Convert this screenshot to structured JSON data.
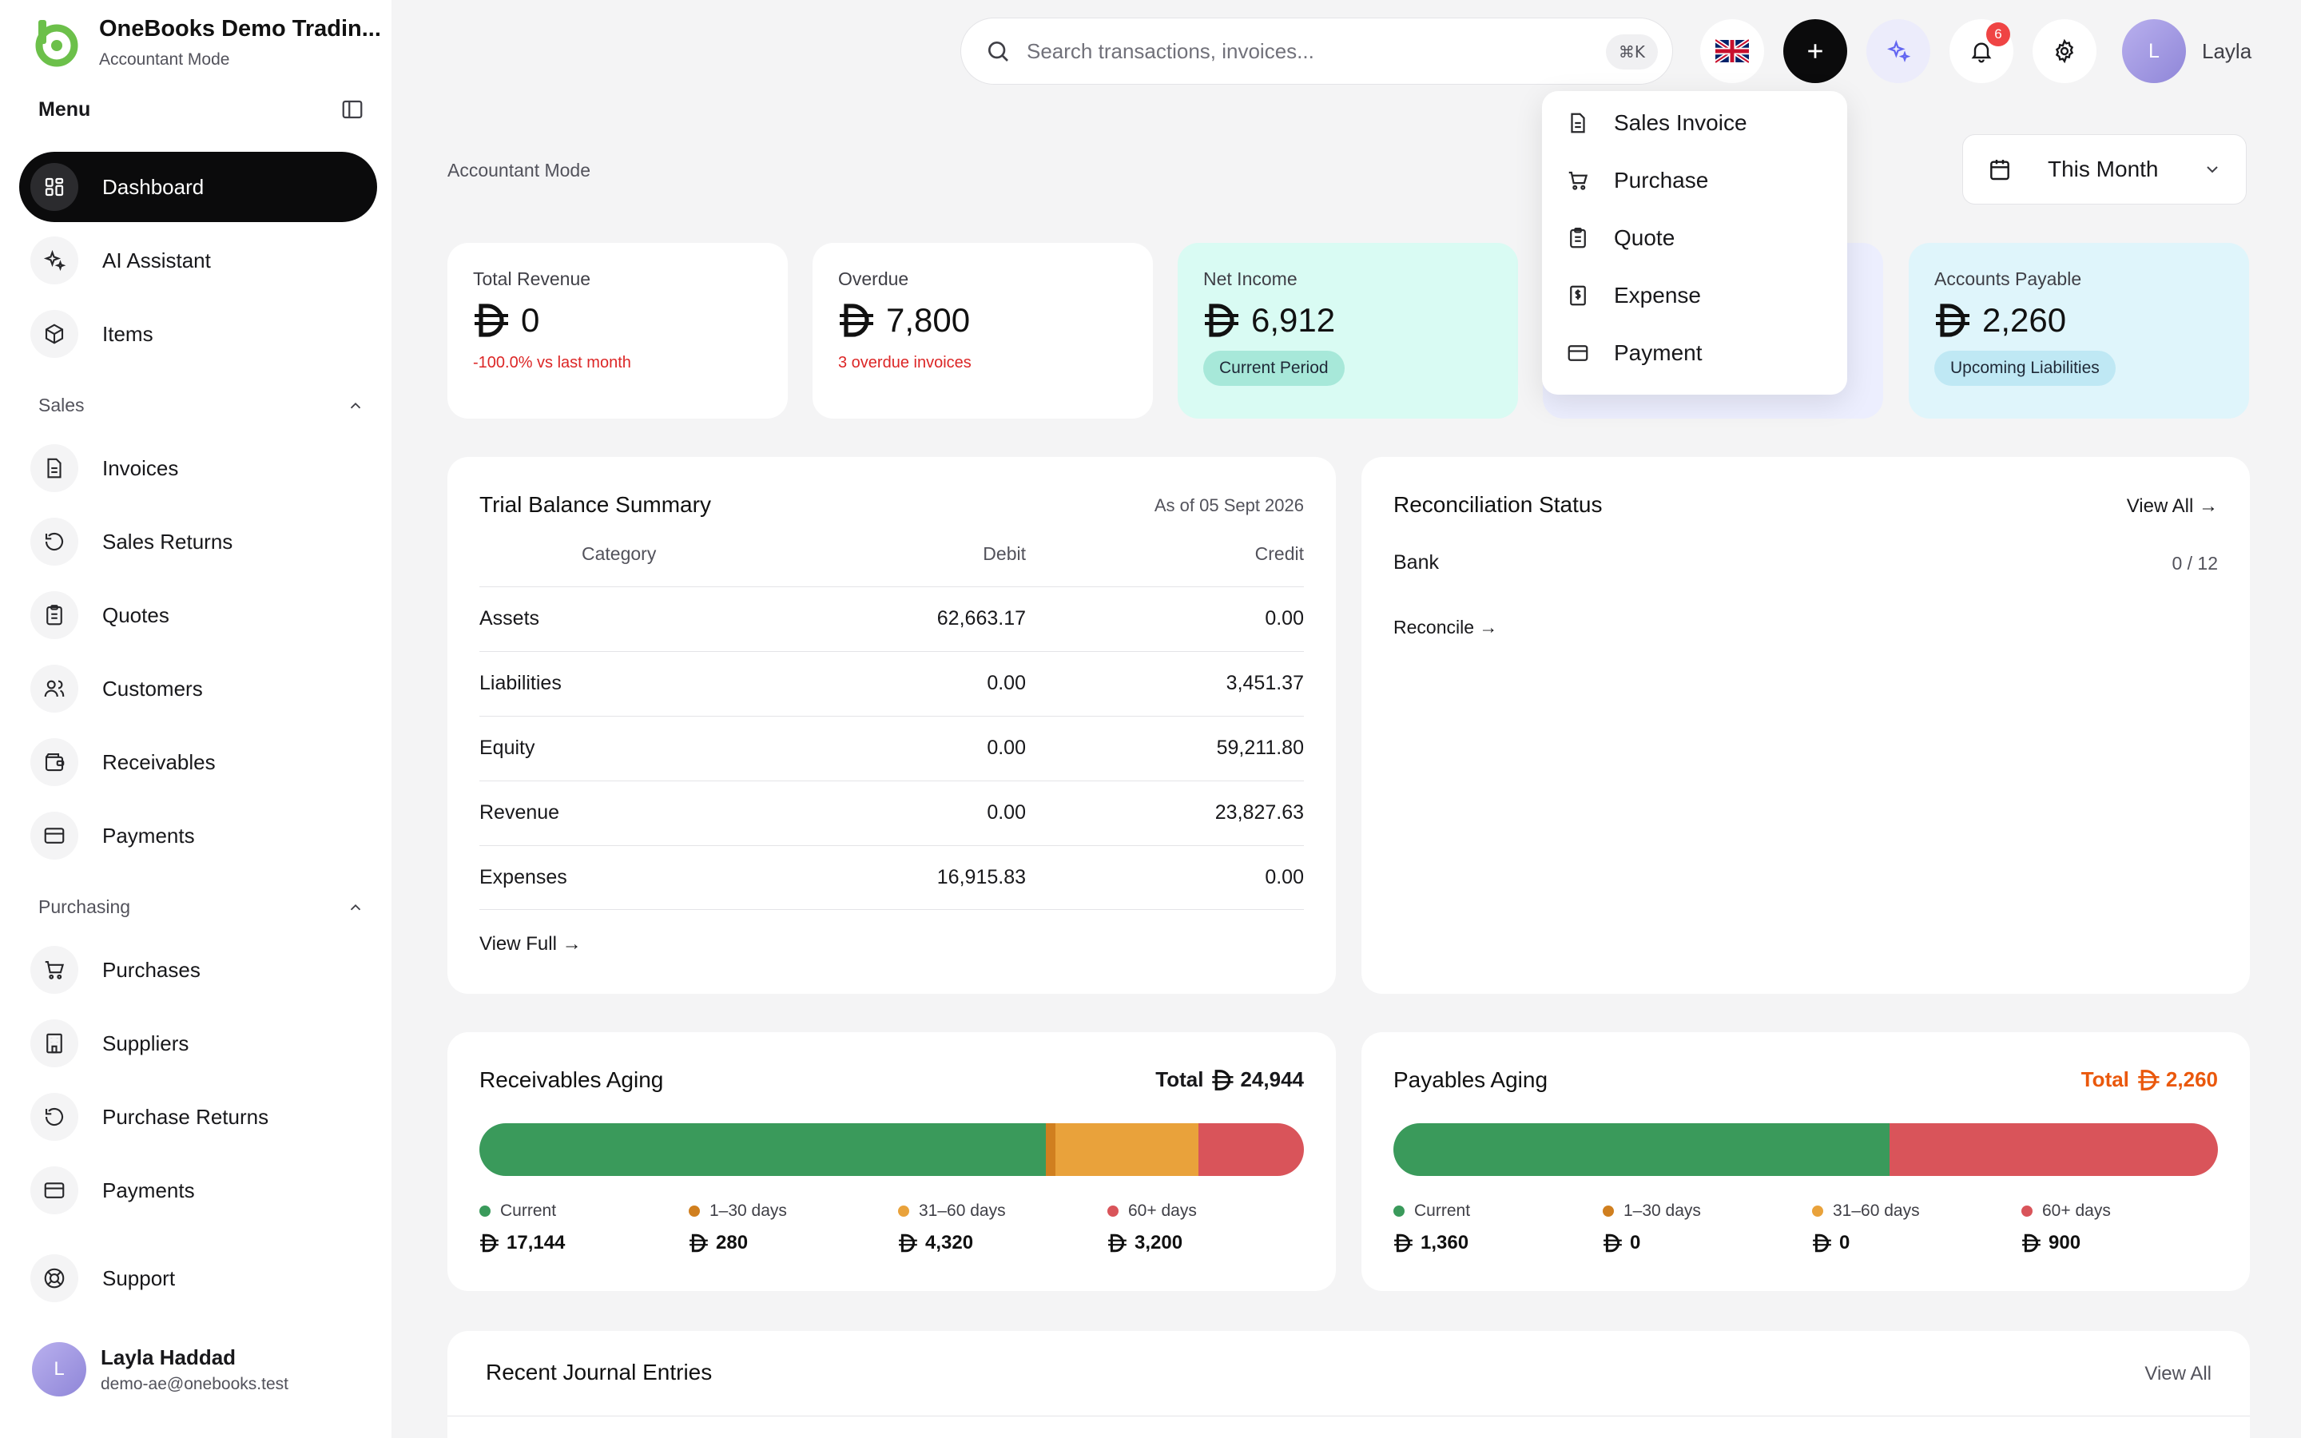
{
  "brand": {
    "name": "OneBooks Demo Tradin...",
    "mode": "Accountant Mode"
  },
  "sidebar": {
    "menu_title": "Menu",
    "items": [
      {
        "label": "Dashboard",
        "icon": "grid-icon",
        "active": true
      },
      {
        "label": "AI Assistant",
        "icon": "sparkles-icon"
      },
      {
        "label": "Items",
        "icon": "box-icon"
      }
    ],
    "sales_title": "Sales",
    "sales_items": [
      {
        "label": "Invoices",
        "icon": "file-icon"
      },
      {
        "label": "Sales Returns",
        "icon": "rotate-icon"
      },
      {
        "label": "Quotes",
        "icon": "clipboard-icon"
      },
      {
        "label": "Customers",
        "icon": "users-icon"
      },
      {
        "label": "Receivables",
        "icon": "wallet-icon"
      },
      {
        "label": "Payments",
        "icon": "card-icon"
      }
    ],
    "purchasing_title": "Purchasing",
    "purchasing_items": [
      {
        "label": "Purchases",
        "icon": "cart-icon"
      },
      {
        "label": "Suppliers",
        "icon": "building-icon"
      },
      {
        "label": "Purchase Returns",
        "icon": "rotate-icon"
      },
      {
        "label": "Payments",
        "icon": "card-icon"
      }
    ],
    "support_label": "Support",
    "user": {
      "initial": "L",
      "name": "Layla Haddad",
      "email": "demo-ae@onebooks.test"
    }
  },
  "header": {
    "search_placeholder": "Search transactions, invoices...",
    "search_shortcut": "⌘K",
    "notification_count": "6",
    "user_initial": "L",
    "user_name": "Layla"
  },
  "dropdown": {
    "items": [
      "Sales Invoice",
      "Purchase",
      "Quote",
      "Expense",
      "Payment"
    ]
  },
  "page": {
    "mode_label": "Accountant Mode",
    "period": "This Month"
  },
  "stats": {
    "revenue": {
      "label": "Total Revenue",
      "value": "0",
      "sub": "-100.0% vs last month"
    },
    "overdue": {
      "label": "Overdue",
      "value": "7,800",
      "sub": "3 overdue invoices"
    },
    "net_income": {
      "label": "Net Income",
      "value": "6,912",
      "pill": "Current Period"
    },
    "payable": {
      "label": "Accounts Payable",
      "value": "2,260",
      "pill": "Upcoming Liabilities"
    }
  },
  "trial_balance": {
    "title": "Trial Balance Summary",
    "as_of": "As of 05 Sept 2026",
    "headers": {
      "category": "Category",
      "debit": "Debit",
      "credit": "Credit"
    },
    "rows": [
      {
        "category": "Assets",
        "debit": "62,663.17",
        "credit": "0.00"
      },
      {
        "category": "Liabilities",
        "debit": "0.00",
        "credit": "3,451.37"
      },
      {
        "category": "Equity",
        "debit": "0.00",
        "credit": "59,211.80"
      },
      {
        "category": "Revenue",
        "debit": "0.00",
        "credit": "23,827.63"
      },
      {
        "category": "Expenses",
        "debit": "16,915.83",
        "credit": "0.00"
      }
    ],
    "view_full": "View Full →"
  },
  "reconciliation": {
    "title": "Reconciliation Status",
    "view_all": "View All →",
    "bank_label": "Bank",
    "bank_count": "0 / 12",
    "reconcile": "Reconcile →"
  },
  "receivables_aging": {
    "title": "Receivables Aging",
    "total_label": "Total",
    "total": "24,944",
    "buckets": [
      {
        "label": "Current",
        "amount": "17,144",
        "value": 17144,
        "color": "#3a9a5b"
      },
      {
        "label": "1–30 days",
        "amount": "280",
        "value": 280,
        "color": "#d07f1f"
      },
      {
        "label": "31–60 days",
        "amount": "4,320",
        "value": 4320,
        "color": "#e9a23b"
      },
      {
        "label": "60+ days",
        "amount": "3,200",
        "value": 3200,
        "color": "#d9545a"
      }
    ]
  },
  "payables_aging": {
    "title": "Payables Aging",
    "total_label": "Total",
    "total": "2,260",
    "total_color": "#ea580c",
    "buckets": [
      {
        "label": "Current",
        "amount": "1,360",
        "value": 1360,
        "color": "#3a9a5b"
      },
      {
        "label": "1–30 days",
        "amount": "0",
        "value": 0,
        "color": "#d07f1f"
      },
      {
        "label": "31–60 days",
        "amount": "0",
        "value": 0,
        "color": "#e9a23b"
      },
      {
        "label": "60+ days",
        "amount": "900",
        "value": 900,
        "color": "#d9545a"
      }
    ]
  },
  "journal": {
    "title": "Recent Journal Entries",
    "view_all": "View All"
  },
  "colors": {
    "accent_green": "#6cc04a",
    "dark": "#0b0b0c",
    "danger": "#dc2626"
  }
}
